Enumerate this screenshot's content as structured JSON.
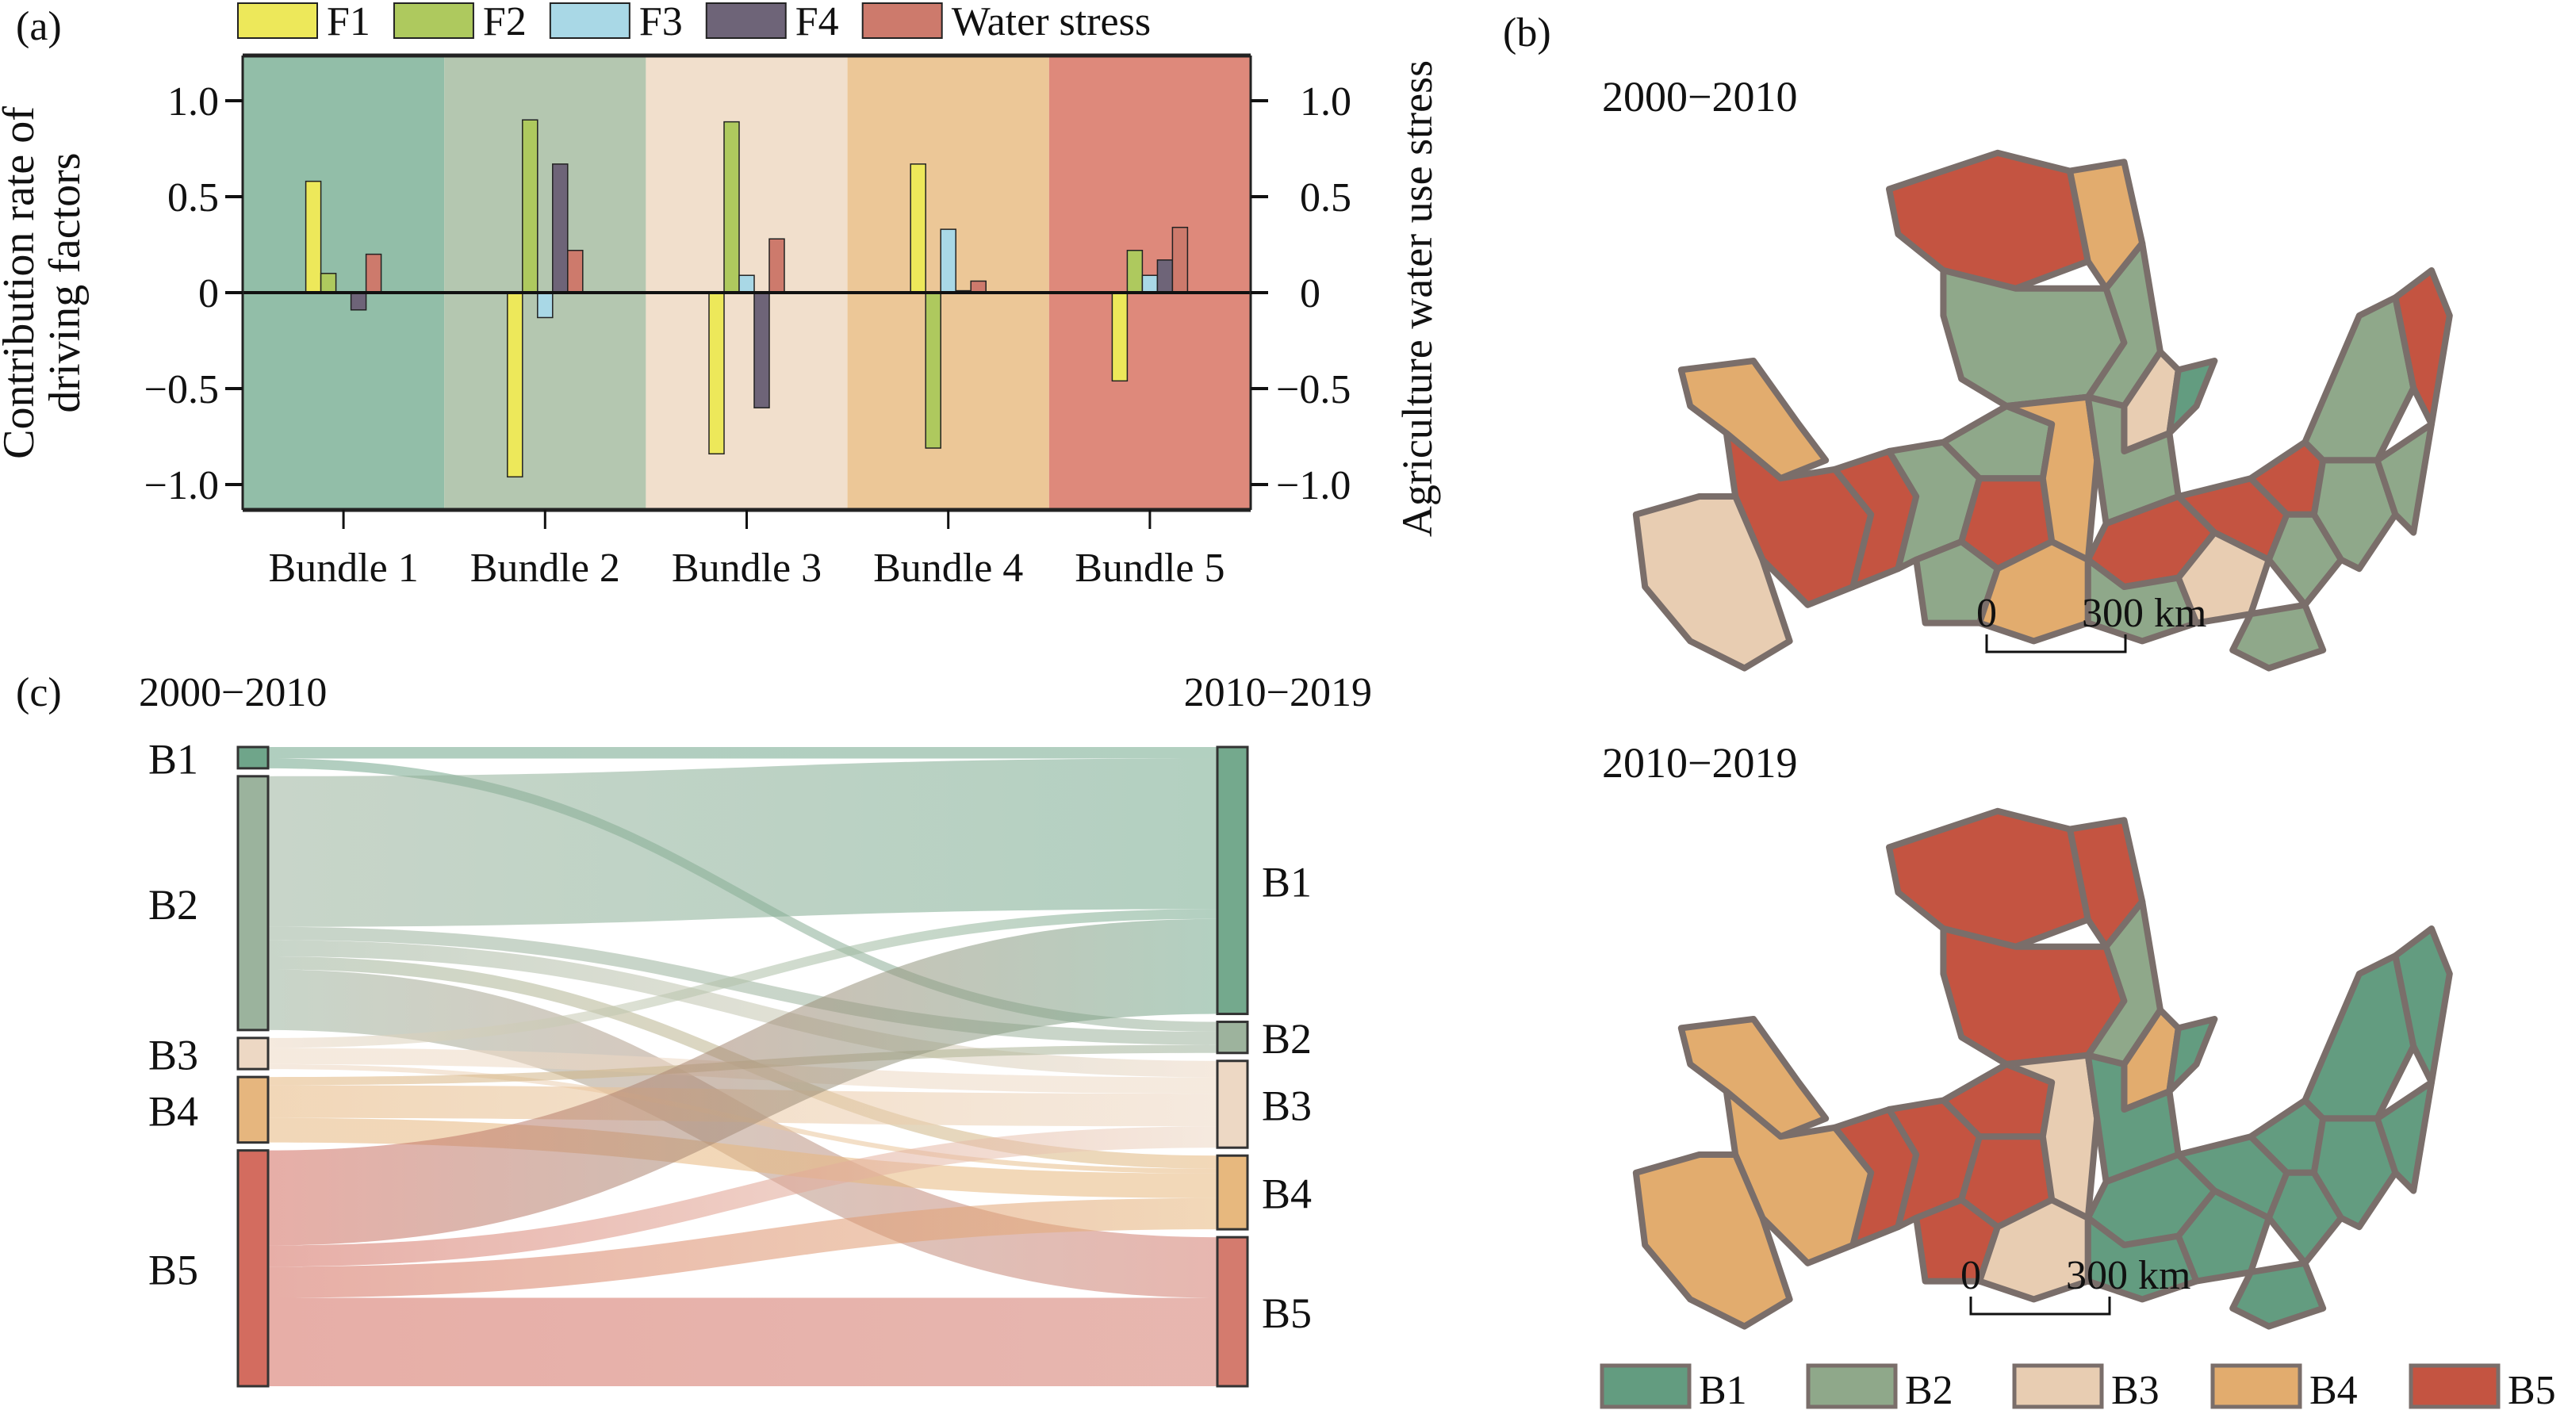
{
  "chart_data": [
    {
      "panel": "(a)",
      "type": "bar",
      "title": "",
      "categories": [
        "Bundle 1",
        "Bundle 2",
        "Bundle 3",
        "Bundle 4",
        "Bundle 5"
      ],
      "series": [
        {
          "name": "F1",
          "color": "#EDE85A",
          "values": [
            0.58,
            -0.96,
            -0.84,
            0.67,
            -0.46
          ]
        },
        {
          "name": "F2",
          "color": "#AEC95E",
          "values": [
            0.1,
            0.9,
            0.89,
            -0.81,
            0.22
          ]
        },
        {
          "name": "F3",
          "color": "#A9D8E6",
          "values": [
            0.0,
            -0.13,
            0.09,
            0.33,
            0.09
          ]
        },
        {
          "name": "F4",
          "color": "#6E6478",
          "values": [
            -0.09,
            0.67,
            -0.6,
            0.01,
            0.17
          ]
        },
        {
          "name": "Water stress",
          "color": "#CD7A6C",
          "values": [
            0.2,
            0.22,
            0.28,
            0.06,
            0.34
          ]
        }
      ],
      "band_colors": [
        "#92BEA8",
        "#B4C7B0",
        "#F1DFCC",
        "#ECC797",
        "#DE897B"
      ],
      "ylabel": "Contribution rate of driving factors",
      "ylabel_lines": [
        "Contribution rate of",
        "driving factors"
      ],
      "y2label": "Agriculture water use stress",
      "ylim": [
        -1.15,
        1.25
      ],
      "yticks": [
        1.0,
        0.5,
        0,
        -0.5,
        -1.0
      ],
      "ytick_labels": [
        "1.0",
        "0.5",
        "0",
        "−0.5",
        "−1.0"
      ],
      "legend": [
        "F1",
        "F2",
        "F3",
        "F4",
        "Water stress"
      ],
      "legend_position": "top",
      "grid": false
    },
    {
      "panel": "(c)",
      "type": "sankey",
      "left_title": "2000−2010",
      "right_title": "2010−2019",
      "left_nodes": [
        {
          "label": "B1",
          "value": 13,
          "color": "#6FA58A"
        },
        {
          "label": "B2",
          "value": 155,
          "color": "#9BB39D"
        },
        {
          "label": "B3",
          "value": 19,
          "color": "#EDD8C4"
        },
        {
          "label": "B4",
          "value": 40,
          "color": "#E6B67E"
        },
        {
          "label": "B5",
          "value": 144,
          "color": "#D36C5F"
        }
      ],
      "right_nodes": [
        {
          "label": "B1",
          "value": 163,
          "color": "#74A98D"
        },
        {
          "label": "B2",
          "value": 19,
          "color": "#9DB39D"
        },
        {
          "label": "B3",
          "value": 53,
          "color": "#EDD8C4"
        },
        {
          "label": "B4",
          "value": 45,
          "color": "#E7B87E"
        },
        {
          "label": "B5",
          "value": 91,
          "color": "#D47B6E"
        }
      ],
      "flows": [
        {
          "from": "B1",
          "to": "B1",
          "value": 7
        },
        {
          "from": "B1",
          "to": "B2",
          "value": 6
        },
        {
          "from": "B2",
          "to": "B1",
          "value": 92
        },
        {
          "from": "B2",
          "to": "B2",
          "value": 8
        },
        {
          "from": "B2",
          "to": "B3",
          "value": 10
        },
        {
          "from": "B2",
          "to": "B4",
          "value": 8
        },
        {
          "from": "B2",
          "to": "B5",
          "value": 37
        },
        {
          "from": "B3",
          "to": "B1",
          "value": 6
        },
        {
          "from": "B3",
          "to": "B3",
          "value": 10
        },
        {
          "from": "B3",
          "to": "B4",
          "value": 3
        },
        {
          "from": "B4",
          "to": "B2",
          "value": 5
        },
        {
          "from": "B4",
          "to": "B3",
          "value": 20
        },
        {
          "from": "B4",
          "to": "B4",
          "value": 15
        },
        {
          "from": "B5",
          "to": "B1",
          "value": 58
        },
        {
          "from": "B5",
          "to": "B3",
          "value": 13
        },
        {
          "from": "B5",
          "to": "B4",
          "value": 19
        },
        {
          "from": "B5",
          "to": "B5",
          "value": 54
        }
      ]
    }
  ],
  "panels": {
    "a_label": "(a)",
    "b_label": "(b)",
    "c_label": "(c)"
  },
  "maps": [
    {
      "title": "2000−2010",
      "scale_zero": "0",
      "scale_end": "300 km"
    },
    {
      "title": "2010−2019",
      "scale_zero": "0",
      "scale_end": "300 km"
    }
  ],
  "map_legend": [
    {
      "label": "B1",
      "color": "#639C80"
    },
    {
      "label": "B2",
      "color": "#8FA88A"
    },
    {
      "label": "B3",
      "color": "#E8CDB2"
    },
    {
      "label": "B4",
      "color": "#E2AC6E"
    },
    {
      "label": "B5",
      "color": "#C45441"
    }
  ],
  "map_border_color": "#7A6E6A"
}
